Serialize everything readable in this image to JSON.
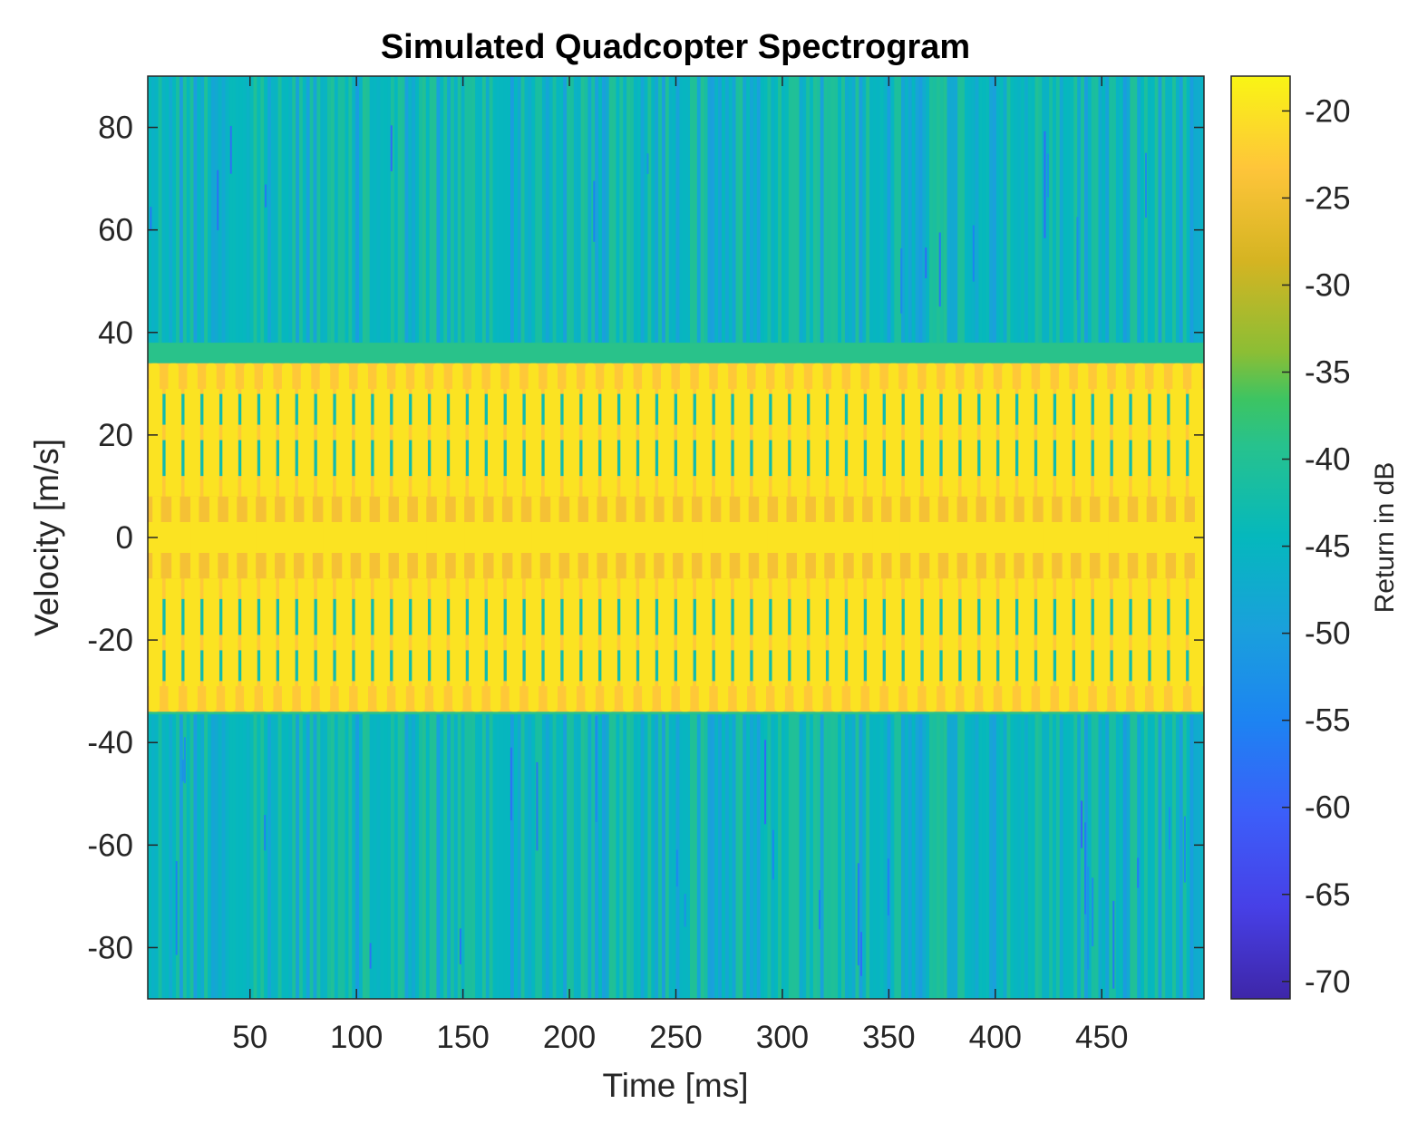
{
  "chart_data": {
    "type": "heatmap",
    "title": "Simulated Quadcopter Spectrogram",
    "xlabel": "Time [ms]",
    "ylabel": "Velocity [m/s]",
    "xlim": [
      2,
      498
    ],
    "ylim": [
      -90,
      90
    ],
    "x_ticks": [
      50,
      100,
      150,
      200,
      250,
      300,
      350,
      400,
      450
    ],
    "y_ticks": [
      80,
      60,
      40,
      20,
      0,
      -20,
      -40,
      -60,
      -80
    ],
    "grid": false,
    "colorbar": {
      "label": "Return in dB",
      "limits": [
        -71,
        -18
      ],
      "ticks": [
        -20,
        -25,
        -30,
        -35,
        -40,
        -45,
        -50,
        -55,
        -60,
        -65,
        -70
      ],
      "colormap": "parula"
    },
    "structure": {
      "background_level_db": -44,
      "band_velocity_range": [
        -34,
        34
      ],
      "band_peak_db": -20,
      "center_band_velocity_range": [
        -8,
        8
      ],
      "inner_band_velocity_range": [
        -29,
        29
      ],
      "modulation_period_ms": 8.9,
      "gap_velocity_ranges": [
        [
          12,
          19
        ],
        [
          -19,
          -12
        ],
        [
          22,
          28
        ],
        [
          -28,
          -22
        ]
      ]
    }
  }
}
